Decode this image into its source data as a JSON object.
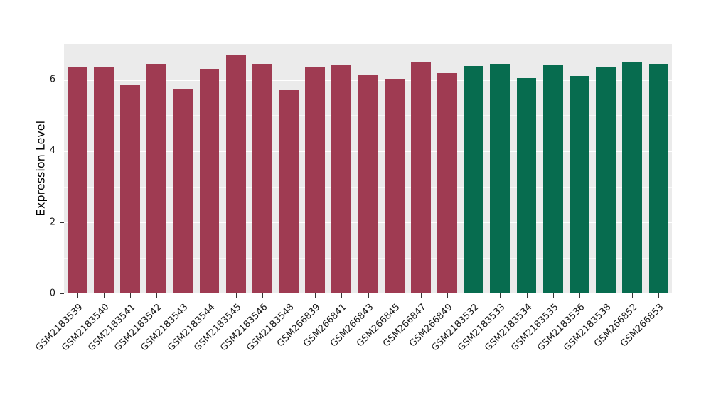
{
  "figure": {
    "background": "#ffffff",
    "panel_background": "#ebebeb",
    "gridline_color": "#ffffff"
  },
  "chart_data": {
    "type": "bar",
    "title": "",
    "xlabel": "",
    "ylabel": "Expression Level",
    "ylim": [
      0,
      7
    ],
    "yticks": [
      0,
      2,
      4,
      6
    ],
    "ytick_labels": [
      "0",
      "2",
      "4",
      "6"
    ],
    "yticks_minor": [
      1,
      3,
      5
    ],
    "grid": "on",
    "legend": "none",
    "categories": [
      "GSM2183539",
      "GSM2183540",
      "GSM2183541",
      "GSM2183542",
      "GSM2183543",
      "GSM2183544",
      "GSM2183545",
      "GSM2183546",
      "GSM2183548",
      "GSM266839",
      "GSM266841",
      "GSM266843",
      "GSM266845",
      "GSM266847",
      "GSM266849",
      "GSM2183532",
      "GSM2183533",
      "GSM2183534",
      "GSM2183535",
      "GSM2183536",
      "GSM2183538",
      "GSM266852",
      "GSM266853"
    ],
    "values": [
      6.35,
      6.35,
      5.85,
      6.45,
      5.75,
      6.3,
      6.7,
      6.45,
      5.72,
      6.35,
      6.4,
      6.12,
      6.02,
      6.5,
      6.18,
      6.38,
      6.45,
      6.05,
      6.4,
      6.1,
      6.35,
      6.5,
      6.45
    ],
    "groups": [
      0,
      0,
      0,
      0,
      0,
      0,
      0,
      0,
      0,
      0,
      0,
      0,
      0,
      0,
      0,
      1,
      1,
      1,
      1,
      1,
      1,
      1,
      1
    ],
    "group_colors": [
      "#9f3b52",
      "#076c4f"
    ]
  }
}
